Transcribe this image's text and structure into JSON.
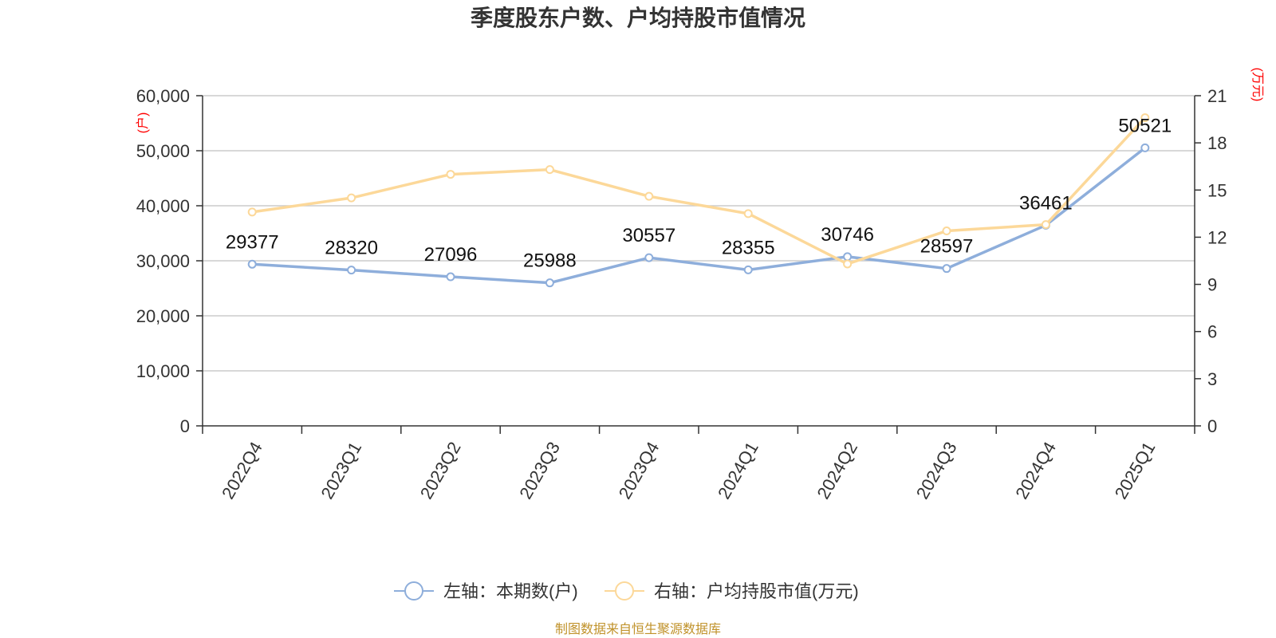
{
  "chart_data": {
    "type": "line",
    "title": "季度股东户数、户均持股市值情况",
    "categories": [
      "2022Q4",
      "2023Q1",
      "2023Q2",
      "2023Q3",
      "2023Q4",
      "2024Q1",
      "2024Q2",
      "2024Q3",
      "2024Q4",
      "2025Q1"
    ],
    "left_axis": {
      "unit": "(户)",
      "ylim": [
        0,
        60000
      ],
      "ticks": [
        "0",
        "10,000",
        "20,000",
        "30,000",
        "40,000",
        "50,000",
        "60,000"
      ]
    },
    "right_axis": {
      "unit": "(万元)",
      "ylim": [
        0,
        21
      ],
      "ticks": [
        "0",
        "3",
        "6",
        "9",
        "12",
        "15",
        "18",
        "21"
      ]
    },
    "series": [
      {
        "name": "左轴：本期数(户)",
        "axis": "left",
        "color": "#8eaedb",
        "values": [
          29377,
          28320,
          27096,
          25988,
          30557,
          28355,
          30746,
          28597,
          36461,
          50521
        ],
        "labels": [
          "29377",
          "28320",
          "27096",
          "25988",
          "30557",
          "28355",
          "30746",
          "28597",
          "36461",
          "50521"
        ]
      },
      {
        "name": "右轴：户均持股市值(万元)",
        "axis": "right",
        "color": "#fcd899",
        "values": [
          13.6,
          14.5,
          16.0,
          16.3,
          14.6,
          13.5,
          10.3,
          12.4,
          12.8,
          19.6
        ]
      }
    ],
    "grid": true,
    "legend_position": "bottom-center",
    "source": "制图数据来自恒生聚源数据库"
  }
}
